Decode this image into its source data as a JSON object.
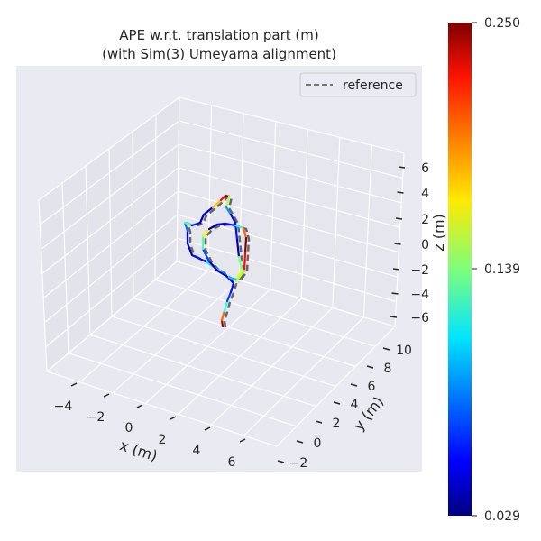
{
  "chart_data": {
    "type": "line",
    "projection": "3d",
    "title": "APE w.r.t. translation part (m)",
    "subtitle": "(with Sim(3) Umeyama alignment)",
    "xlabel": "x (m)",
    "ylabel": "y (m)",
    "zlabel": "z (m)",
    "x_ticks": [
      "−4",
      "−2",
      "0",
      "2",
      "4",
      "6"
    ],
    "y_ticks": [
      "−2",
      "0",
      "2",
      "4",
      "6",
      "8",
      "10"
    ],
    "z_ticks": [
      "6",
      "4",
      "2",
      "0",
      "−2",
      "−4",
      "−6"
    ],
    "xlim": [
      -5,
      7
    ],
    "ylim": [
      -3,
      11
    ],
    "zlim": [
      -7,
      7
    ],
    "grid": true,
    "legend": {
      "placement": "top-right",
      "entries": [
        {
          "label": "reference",
          "style": "dashed",
          "color": "#666666"
        }
      ]
    },
    "colorbar": {
      "colormap": "jet",
      "min": 0.029,
      "max": 0.25,
      "tick_labels": [
        "0.250",
        "0.139",
        "0.029"
      ]
    },
    "trajectory_segment_errors": [
      0.24,
      0.2,
      0.12,
      0.07,
      0.06,
      0.05,
      0.1,
      0.11,
      0.06,
      0.04,
      0.05,
      0.08,
      0.13,
      0.06,
      0.04,
      0.05,
      0.18,
      0.22,
      0.24,
      0.15,
      0.09,
      0.05,
      0.06,
      0.04,
      0.14,
      0.16,
      0.1,
      0.05,
      0.04,
      0.07,
      0.13,
      0.17,
      0.04,
      0.05,
      0.06,
      0.12,
      0.2,
      0.25,
      0.22,
      0.15
    ]
  }
}
